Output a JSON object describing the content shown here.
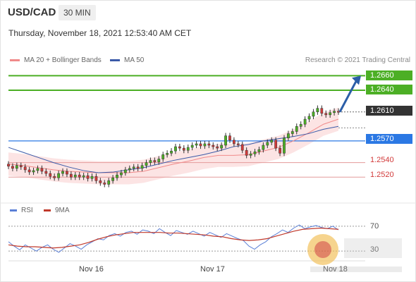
{
  "header": {
    "symbol": "USD/CAD",
    "timeframe": "30 MIN",
    "datetime": "Thursday, November 18, 2021 12:53:40 AM CET"
  },
  "legend": {
    "ma20": "MA 20 + Bollinger Bands",
    "ma50": "MA 50",
    "credit": "Research © 2021 Trading Central",
    "rsi": "RSI",
    "ma9": "9MA"
  },
  "colors": {
    "bull": "#4caf25",
    "bear": "#d23a3a",
    "accent": "#2b78e4",
    "dark": "#333333",
    "ma20": "#f08a8a",
    "ma50": "#3a5aa8"
  },
  "chart_data": {
    "type": "line",
    "x_ticks": [
      "Nov 16",
      "Nov 17",
      "Nov 18"
    ],
    "ylim": [
      1.249,
      1.2675
    ],
    "price_levels": [
      {
        "value": 1.266,
        "label": "1.2660",
        "style": "resistance"
      },
      {
        "value": 1.264,
        "label": "1.2640",
        "style": "resistance"
      },
      {
        "value": 1.261,
        "label": "1.2610",
        "style": "last"
      },
      {
        "value": 1.257,
        "label": "1.2570",
        "style": "pivot"
      },
      {
        "value": 1.254,
        "label": "1.2540",
        "style": "support"
      },
      {
        "value": 1.252,
        "label": "1.2520",
        "style": "support"
      }
    ],
    "price_series": [
      1.2535,
      1.2532,
      1.2536,
      1.2534,
      1.253,
      1.2527,
      1.2529,
      1.2532,
      1.2528,
      1.2525,
      1.2521,
      1.2519,
      1.2525,
      1.2528,
      1.2524,
      1.252,
      1.2523,
      1.252,
      1.2522,
      1.2518,
      1.2521,
      1.2515,
      1.2512,
      1.251,
      1.2515,
      1.2519,
      1.2523,
      1.2526,
      1.253,
      1.2532,
      1.2534,
      1.2532,
      1.2536,
      1.254,
      1.2543,
      1.2541,
      1.2545,
      1.2551,
      1.2553,
      1.2556,
      1.2562,
      1.256,
      1.2557,
      1.2561,
      1.2564,
      1.2566,
      1.2563,
      1.2566,
      1.2564,
      1.2562,
      1.256,
      1.2564,
      1.2577,
      1.2571,
      1.2566,
      1.2565,
      1.2557,
      1.255,
      1.2552,
      1.2555,
      1.2558,
      1.2564,
      1.2568,
      1.2571,
      1.256,
      1.2553,
      1.2574,
      1.258,
      1.2583,
      1.259,
      1.2593,
      1.26,
      1.2604,
      1.261,
      1.2615,
      1.2608,
      1.2606,
      1.2609,
      1.2611,
      1.261
    ],
    "ma20": [
      1.2538,
      1.2536,
      1.2533,
      1.253,
      1.2528,
      1.2527,
      1.2526,
      1.2526,
      1.2526,
      1.2528,
      1.2533,
      1.2538,
      1.2542,
      1.2547,
      1.255,
      1.255,
      1.2551,
      1.2556,
      1.2561,
      1.257,
      1.2581,
      1.2593,
      1.26
    ],
    "ma50": [
      1.2561,
      1.2554,
      1.2547,
      1.254,
      1.2534,
      1.2529,
      1.2526,
      1.2527,
      1.253,
      1.2533,
      1.2538,
      1.2543,
      1.2547,
      1.2551,
      1.2556,
      1.2562,
      1.2565,
      1.257,
      1.2573,
      1.2576,
      1.258,
      1.2586,
      1.259
    ],
    "forecast_target": 1.266,
    "rsi": {
      "levels": [
        "70",
        "30"
      ],
      "ylim": [
        20,
        80
      ],
      "rsi_values": [
        45,
        38,
        32,
        40,
        35,
        30,
        36,
        40,
        33,
        28,
        35,
        42,
        38,
        33,
        40,
        45,
        50,
        48,
        55,
        58,
        54,
        60,
        62,
        57,
        64,
        62,
        58,
        66,
        60,
        55,
        63,
        60,
        57,
        62,
        58,
        54,
        60,
        56,
        52,
        58,
        54,
        50,
        47,
        38,
        33,
        40,
        45,
        53,
        58,
        64,
        60,
        67,
        72,
        66,
        69,
        71,
        68,
        66,
        70,
        64
      ],
      "ma9_values": [
        40,
        38,
        37,
        37,
        36,
        35,
        36,
        38,
        40,
        44,
        49,
        53,
        56,
        58,
        60,
        60,
        60,
        60,
        59,
        59,
        58,
        57,
        56,
        54,
        53,
        50,
        48,
        47,
        48,
        50,
        54,
        58,
        62,
        65,
        66,
        67,
        66,
        65
      ]
    }
  }
}
